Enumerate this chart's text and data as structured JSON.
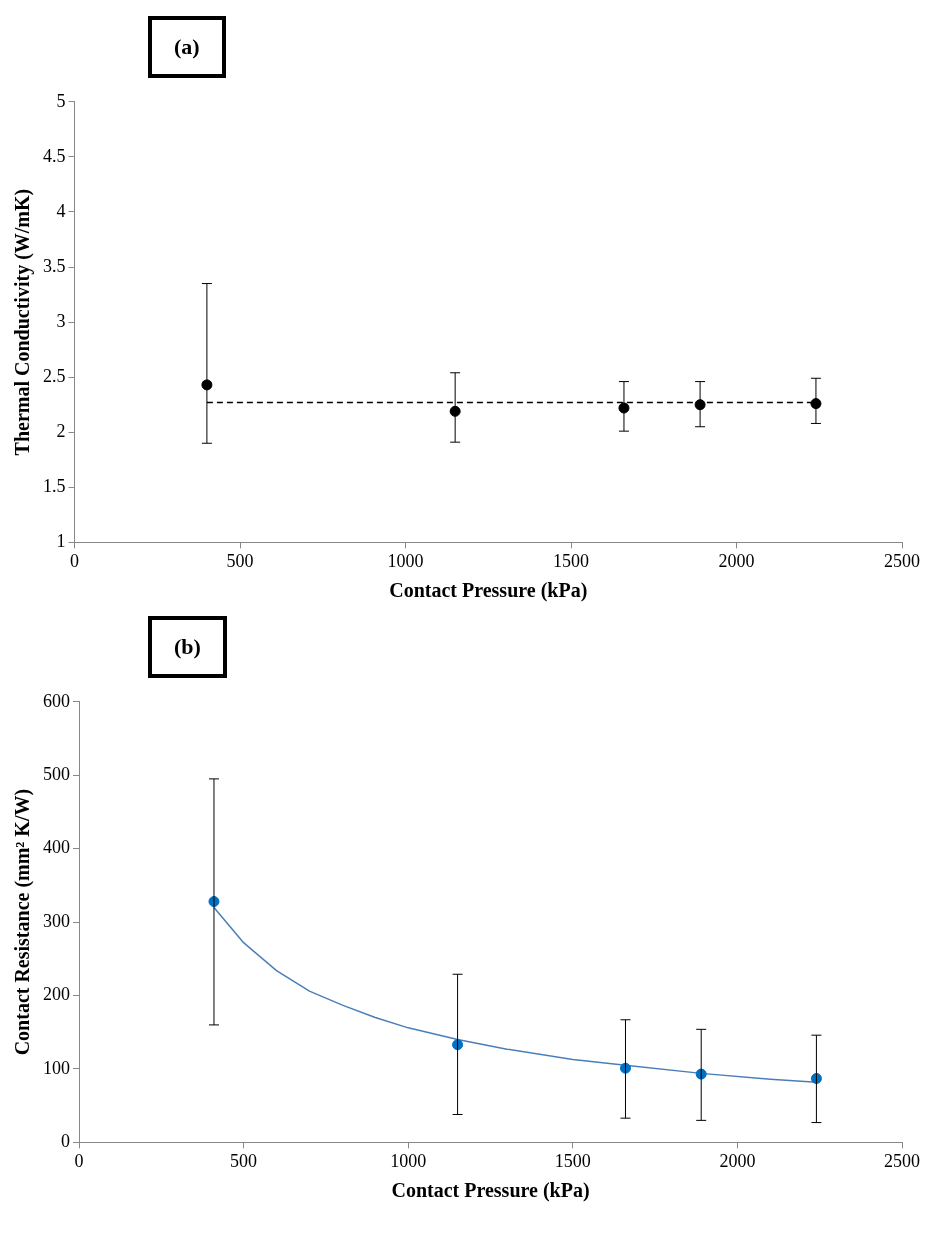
{
  "chart_data": [
    {
      "type": "scatter",
      "annotations": [
        "(a)"
      ],
      "xlabel": "Contact Pressure (kPa)",
      "ylabel": "Thermal Conductivity (W/mK)",
      "xlim": [
        0,
        2500
      ],
      "xticks": [
        0,
        500,
        1000,
        1500,
        2000,
        2500
      ],
      "ylim": [
        1,
        5
      ],
      "yticks": [
        1,
        1.5,
        2,
        2.5,
        3,
        3.5,
        4,
        4.5,
        5
      ],
      "grid": false,
      "series": [
        {
          "type": "scatter",
          "color": "#000000",
          "marker": "circle",
          "x": [
            400,
            1150,
            1660,
            1890,
            2240
          ],
          "values": [
            2.43,
            2.19,
            2.22,
            2.25,
            2.26
          ],
          "errors": [
            [
              1.9,
              3.35
            ],
            [
              1.91,
              2.54
            ],
            [
              2.01,
              2.46
            ],
            [
              2.05,
              2.46
            ],
            [
              2.08,
              2.49
            ]
          ]
        },
        {
          "type": "line",
          "color": "#000000",
          "marker": "none",
          "line_style": "dashed",
          "x": [
            400,
            2240
          ],
          "values": [
            2.27,
            2.27
          ]
        }
      ]
    },
    {
      "type": "scatter",
      "annotations": [
        "(b)"
      ],
      "xlabel": "Contact Pressure (kPa)",
      "ylabel": "Contact Resistance (mm² K/W)",
      "xlim": [
        0,
        2500
      ],
      "xticks": [
        0,
        500,
        1000,
        1500,
        2000,
        2500
      ],
      "ylim": [
        0,
        600
      ],
      "yticks": [
        0,
        100,
        200,
        300,
        400,
        500,
        600
      ],
      "grid": false,
      "series": [
        {
          "type": "scatter",
          "color": "#0070c0",
          "marker": "circle",
          "x": [
            410,
            1150,
            1660,
            1890,
            2240
          ],
          "values": [
            328,
            133,
            101,
            93,
            87
          ],
          "errors": [
            [
              160,
              495
            ],
            [
              38,
              229
            ],
            [
              33,
              167
            ],
            [
              30,
              154
            ],
            [
              27,
              146
            ]
          ]
        },
        {
          "type": "line",
          "color": "#4a7ebb",
          "marker": "none",
          "line_style": "solid",
          "x": [
            410,
            500,
            600,
            700,
            800,
            900,
            1000,
            1150,
            1300,
            1500,
            1660,
            1890,
            2100,
            2240
          ],
          "values": [
            320,
            272,
            234,
            206,
            187,
            170,
            156,
            140,
            127,
            113,
            105,
            94,
            86,
            82
          ]
        }
      ]
    }
  ]
}
